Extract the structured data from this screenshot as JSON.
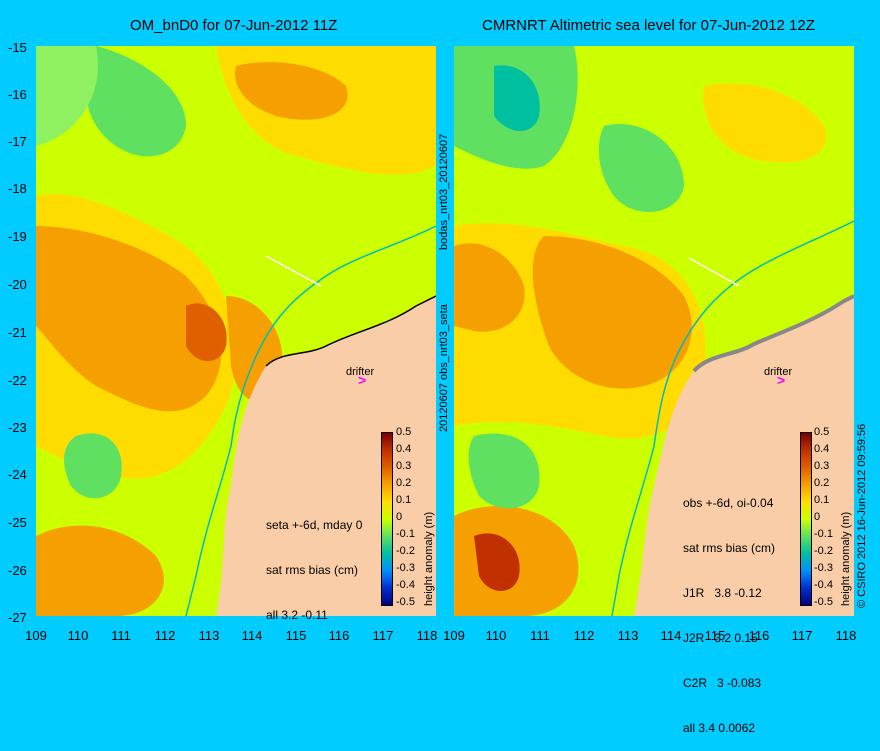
{
  "left_panel": {
    "title": "OM_bnD0 for 07-Jun-2012 11Z",
    "drifter_label": "drifter",
    "stats": [
      "seta +-6d, mday 0",
      "sat rms bias (cm)",
      "all 3.2 -0.11"
    ]
  },
  "right_panel": {
    "title": "CMRNRT Altimetric sea level  for 07-Jun-2012 12Z",
    "drifter_label": "drifter",
    "stats": [
      "obs +-6d, oi-0.04",
      "sat rms bias (cm)",
      "J1R   3.8 -0.12",
      "J2R   3.2 0.15",
      "C2R   3 -0.083",
      "all 3.4 0.0062"
    ]
  },
  "y_axis_ticks": [
    "-15",
    "-16",
    "-17",
    "-18",
    "-19",
    "-20",
    "-21",
    "-22",
    "-23",
    "-24",
    "-25",
    "-26",
    "-27"
  ],
  "x_axis_ticks_left": [
    "109",
    "110",
    "111",
    "112",
    "113",
    "114",
    "115",
    "116",
    "117",
    "118"
  ],
  "x_axis_ticks_right": [
    "109",
    "110",
    "111",
    "112",
    "113",
    "114",
    "115",
    "116",
    "117",
    "118"
  ],
  "colorbar": {
    "ticks": [
      "0.5",
      "0.4",
      "0.3",
      "0.2",
      "0.1",
      "0",
      "-0.1",
      "-0.2",
      "-0.3",
      "-0.4",
      "-0.5"
    ],
    "label": "height anomaly (m)"
  },
  "middle_label_top": "bodas_nrt03_20120607",
  "middle_label_bottom": "20120607 obs_nrt03_seta",
  "credit": "© CSIRO 2012   16-Jun-2012 09:59:56",
  "colors": {
    "background": "#00ccff",
    "land": "#f9cda8",
    "sea_green": "#ccff00",
    "sea_orange": "#f5a000",
    "coast_line": "#00bbbb"
  }
}
